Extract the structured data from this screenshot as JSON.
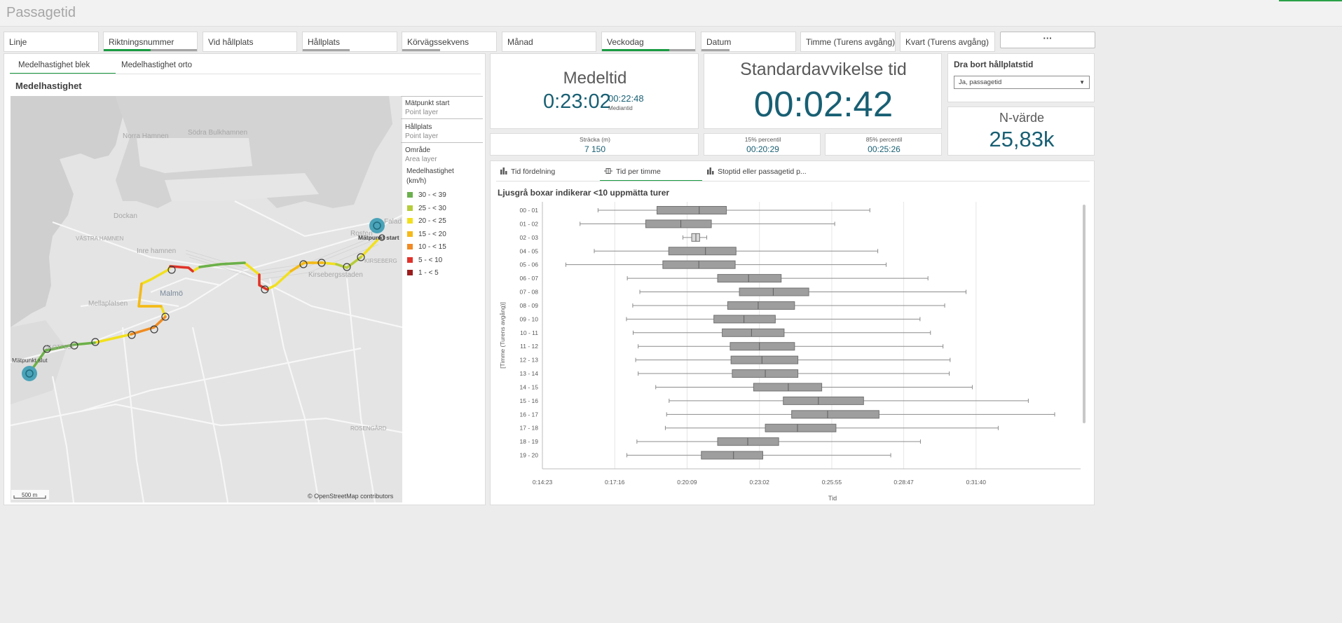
{
  "app": {
    "title": "Passagetid"
  },
  "filters": [
    {
      "label": "Linje",
      "selected": 0.0,
      "possible": 0.0
    },
    {
      "label": "Riktningsnummer",
      "selected": 0.5,
      "possible": 1.0
    },
    {
      "label": "Vid hållplats",
      "selected": 0.0,
      "possible": 0.0
    },
    {
      "label": "Hållplats",
      "selected": 0.0,
      "possible": 0.5
    },
    {
      "label": "Körvägssekvens",
      "selected": 0.0,
      "possible": 0.4
    },
    {
      "label": "Månad",
      "selected": 0.0,
      "possible": 0.0
    },
    {
      "label": "Veckodag",
      "selected": 0.72,
      "possible": 1.0
    },
    {
      "label": "Datum",
      "selected": 0.0,
      "possible": 0.3
    },
    {
      "label": "Timme (Turens avgång)",
      "selected": 0.0,
      "possible": 0.0
    },
    {
      "label": "Kvart (Turens avgång)",
      "selected": 0.0,
      "possible": 0.0
    }
  ],
  "more_label": "···",
  "map_panel": {
    "tabs": [
      "Medelhastighet blek",
      "Medelhastighet orto"
    ],
    "title": "Medelhastighet",
    "places": [
      "Norra Hamnen",
      "Södra Bulkhamnen",
      "Dockan",
      "VÄSTRA HAMNEN",
      "Inre hamnen",
      "Malmö",
      "Mellaplatsen",
      "SLOTTSST",
      "Kirsebergsstaden",
      "Rosteri",
      "Falads",
      "KIRSEBERG",
      "ROSENGÅRD"
    ],
    "start_label": "Mätpunkt start",
    "end_label": "Mätpunkt slut",
    "scale": "500 m",
    "attribution": "© OpenStreetMap contributors",
    "legend": {
      "layers": [
        {
          "name": "Mätpunkt start",
          "type": "Point layer"
        },
        {
          "name": "Hållplats",
          "type": "Point layer"
        },
        {
          "name": "Område",
          "type": "Area layer"
        }
      ],
      "title": "Medelhastighet (km/h)",
      "items": [
        {
          "label": "30 - < 39",
          "color": "#6ab04c"
        },
        {
          "label": "25 - < 30",
          "color": "#b5cc3c"
        },
        {
          "label": "20 - < 25",
          "color": "#f2e01e"
        },
        {
          "label": "15 - < 20",
          "color": "#f4b91a"
        },
        {
          "label": "10 - < 15",
          "color": "#f08a24"
        },
        {
          "label": "5 - < 10",
          "color": "#e0322c"
        },
        {
          "label": "1 - < 5",
          "color": "#9b1c1c"
        }
      ]
    }
  },
  "kpis": {
    "medeltid": {
      "title": "Medeltid",
      "value": "0:23:02",
      "median_value": "00:22:48",
      "median_label": "Mediantid"
    },
    "std": {
      "title": "Standardavvikelse tid",
      "value": "00:02:42"
    },
    "stracka": {
      "label": "Sträcka (m)",
      "value": "7 150"
    },
    "p15": {
      "label": "15% percentil",
      "value": "00:20:29"
    },
    "p85": {
      "label": "85% percentil",
      "value": "00:25:26"
    },
    "nvarde": {
      "title": "N-värde",
      "value": "25,83k"
    }
  },
  "dra_bort": {
    "title": "Dra bort hållplatstid",
    "value": "Ja, passagetid"
  },
  "chart_tabs": [
    "Tid fördelning",
    "Tid per timme",
    "Stoptid eller passagetid p..."
  ],
  "chart_data": {
    "type": "boxplot",
    "title": "Ljusgrå boxar indikerar <10 uppmätta turer",
    "xlabel": "Tid",
    "ylabel": "[Timme (Turens avgång)]",
    "xticks": [
      "0:14:23",
      "0:17:16",
      "0:20:09",
      "0:23:02",
      "0:25:55",
      "0:28:47",
      "0:31:40"
    ],
    "xlim_seconds": [
      863,
      2150
    ],
    "categories": [
      "00 - 01",
      "01 - 02",
      "02 - 03",
      "04 - 05",
      "05 - 06",
      "06 - 07",
      "07 - 08",
      "08 - 09",
      "09 - 10",
      "10 - 11",
      "11 - 12",
      "12 - 13",
      "13 - 14",
      "14 - 15",
      "15 - 16",
      "16 - 17",
      "17 - 18",
      "18 - 19",
      "19 - 20"
    ],
    "boxes": [
      {
        "min": 996,
        "q1": 1137,
        "median": 1238,
        "q3": 1303,
        "max": 1646,
        "few": false
      },
      {
        "min": 953,
        "q1": 1110,
        "median": 1194,
        "q3": 1267,
        "max": 1562,
        "few": false
      },
      {
        "min": 1199,
        "q1": 1220,
        "median": 1230,
        "q3": 1239,
        "max": 1256,
        "few": true
      },
      {
        "min": 987,
        "q1": 1165,
        "median": 1253,
        "q3": 1326,
        "max": 1665,
        "few": false
      },
      {
        "min": 919,
        "q1": 1151,
        "median": 1237,
        "q3": 1324,
        "max": 1685,
        "few": false
      },
      {
        "min": 1066,
        "q1": 1282,
        "median": 1356,
        "q3": 1434,
        "max": 1785,
        "few": false
      },
      {
        "min": 1096,
        "q1": 1334,
        "median": 1415,
        "q3": 1500,
        "max": 1876,
        "few": false
      },
      {
        "min": 1079,
        "q1": 1306,
        "median": 1379,
        "q3": 1466,
        "max": 1825,
        "few": false
      },
      {
        "min": 1064,
        "q1": 1273,
        "median": 1345,
        "q3": 1420,
        "max": 1766,
        "few": false
      },
      {
        "min": 1080,
        "q1": 1293,
        "median": 1363,
        "q3": 1441,
        "max": 1791,
        "few": false
      },
      {
        "min": 1092,
        "q1": 1312,
        "median": 1382,
        "q3": 1466,
        "max": 1821,
        "few": false
      },
      {
        "min": 1086,
        "q1": 1314,
        "median": 1388,
        "q3": 1474,
        "max": 1838,
        "few": false
      },
      {
        "min": 1092,
        "q1": 1317,
        "median": 1396,
        "q3": 1474,
        "max": 1836,
        "few": false
      },
      {
        "min": 1134,
        "q1": 1368,
        "median": 1451,
        "q3": 1531,
        "max": 1891,
        "few": false
      },
      {
        "min": 1166,
        "q1": 1439,
        "median": 1523,
        "q3": 1631,
        "max": 2025,
        "few": false
      },
      {
        "min": 1160,
        "q1": 1459,
        "median": 1545,
        "q3": 1668,
        "max": 2088,
        "few": false
      },
      {
        "min": 1157,
        "q1": 1396,
        "median": 1473,
        "q3": 1565,
        "max": 1953,
        "few": false
      },
      {
        "min": 1089,
        "q1": 1282,
        "median": 1354,
        "q3": 1428,
        "max": 1767,
        "few": false
      },
      {
        "min": 1065,
        "q1": 1243,
        "median": 1320,
        "q3": 1390,
        "max": 1696,
        "few": false
      }
    ]
  }
}
